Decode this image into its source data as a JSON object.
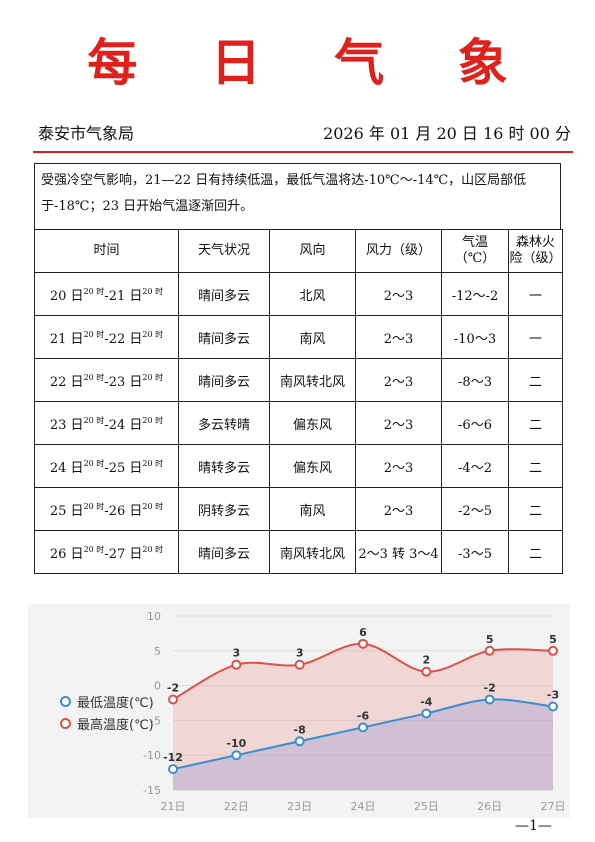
{
  "header": {
    "title": "每 日 气 象",
    "issuer": "泰安市气象局",
    "datetime": "2026 年 01 月 20 日 16 时 00 分"
  },
  "summary": "受强冷空气影响，21—22 日有持续低温，最低气温将达-10℃～-14℃，山区局部低于-18℃；23 日开始气温逐渐回升。",
  "table": {
    "headers": [
      "时间",
      "天气状况",
      "风向",
      "风力（级）",
      "气温（℃）",
      "森林火险（级）"
    ],
    "header_temp_line1": "气温",
    "header_temp_line2": "（℃）",
    "header_fire_line1": "森林火",
    "header_fire_line2": "险（级）",
    "rows": [
      {
        "d1": "20 日",
        "d2": "-21 日",
        "hour": "20 时",
        "weather": "晴间多云",
        "wind_dir": "北风",
        "wind_force": "2～3",
        "temp": "-12～-2",
        "fire": "一"
      },
      {
        "d1": "21 日",
        "d2": "-22 日",
        "hour": "20 时",
        "weather": "晴间多云",
        "wind_dir": "南风",
        "wind_force": "2～3",
        "temp": "-10～3",
        "fire": "一"
      },
      {
        "d1": "22 日",
        "d2": "-23 日",
        "hour": "20 时",
        "weather": "晴间多云",
        "wind_dir": "南风转北风",
        "wind_force": "2～3",
        "temp": "-8～3",
        "fire": "二"
      },
      {
        "d1": "23 日",
        "d2": "-24 日",
        "hour": "20 时",
        "weather": "多云转晴",
        "wind_dir": "偏东风",
        "wind_force": "2～3",
        "temp": "-6～6",
        "fire": "二"
      },
      {
        "d1": "24 日",
        "d2": "-25 日",
        "hour": "20 时",
        "weather": "晴转多云",
        "wind_dir": "偏东风",
        "wind_force": "2～3",
        "temp": "-4～2",
        "fire": "二"
      },
      {
        "d1": "25 日",
        "d2": "-26 日",
        "hour": "20 时",
        "weather": "阴转多云",
        "wind_dir": "南风",
        "wind_force": "2～3",
        "temp": "-2～5",
        "fire": "二"
      },
      {
        "d1": "26 日",
        "d2": "-27 日",
        "hour": "20 时",
        "weather": "晴间多云",
        "wind_dir": "南风转北风",
        "wind_force": "2～3 转 3～4",
        "temp": "-3～5",
        "fire": "二"
      }
    ]
  },
  "chart_data": {
    "type": "area",
    "categories": [
      "21日",
      "22日",
      "23日",
      "24日",
      "25日",
      "26日",
      "27日"
    ],
    "series": [
      {
        "name": "最低温度(℃)",
        "values": [
          -12,
          -10,
          -8,
          -6,
          -4,
          -2,
          -3
        ],
        "color": "#3a8fd0"
      },
      {
        "name": "最高温度(℃)",
        "values": [
          -2,
          3,
          3,
          6,
          2,
          5,
          5
        ],
        "color": "#d9534a"
      }
    ],
    "yticks": [
      "10",
      "5",
      "0",
      "-5",
      "-10",
      "-15"
    ],
    "ylim": [
      -15,
      10
    ],
    "legend_position": "left",
    "grid": true
  },
  "footer": {
    "page_number": "—1—"
  }
}
